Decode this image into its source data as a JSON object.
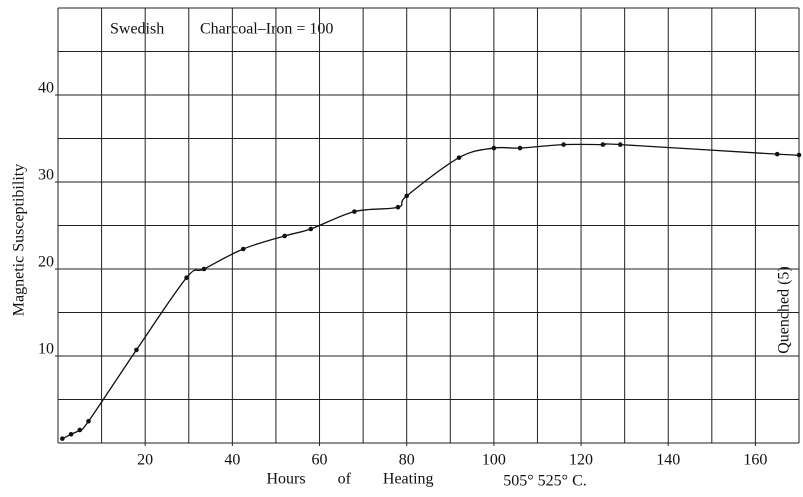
{
  "chart_data": {
    "type": "scatter",
    "annotations": [
      "Swedish",
      "Charcoal–Iron = 100",
      "Quenched (5)"
    ],
    "x_label": "Hours of Heating",
    "x_label_extra": "505° 525° C.",
    "y_label": "Magnetic Susceptibility",
    "x": [
      1,
      3,
      5,
      7,
      18,
      29.5,
      33.5,
      42.5,
      52,
      58,
      68,
      78,
      80,
      92,
      100,
      106,
      116,
      125,
      129,
      165,
      170
    ],
    "values": [
      0.5,
      1,
      1.5,
      2.5,
      10.7,
      19,
      20,
      22.3,
      23.8,
      24.6,
      26.6,
      27.1,
      28.4,
      32.8,
      33.9,
      33.9,
      34.3,
      34.3,
      34.3,
      33.2,
      33.1
    ],
    "color": "#111111",
    "xlim": [
      0,
      170
    ],
    "ylim": [
      0,
      50
    ],
    "xticks": [
      20,
      40,
      60,
      80,
      100,
      120,
      140,
      160
    ],
    "yticks": [
      10,
      20,
      30,
      40
    ],
    "grid": {
      "x_step": 10,
      "y_step": 5
    },
    "smooth_curve": true
  }
}
